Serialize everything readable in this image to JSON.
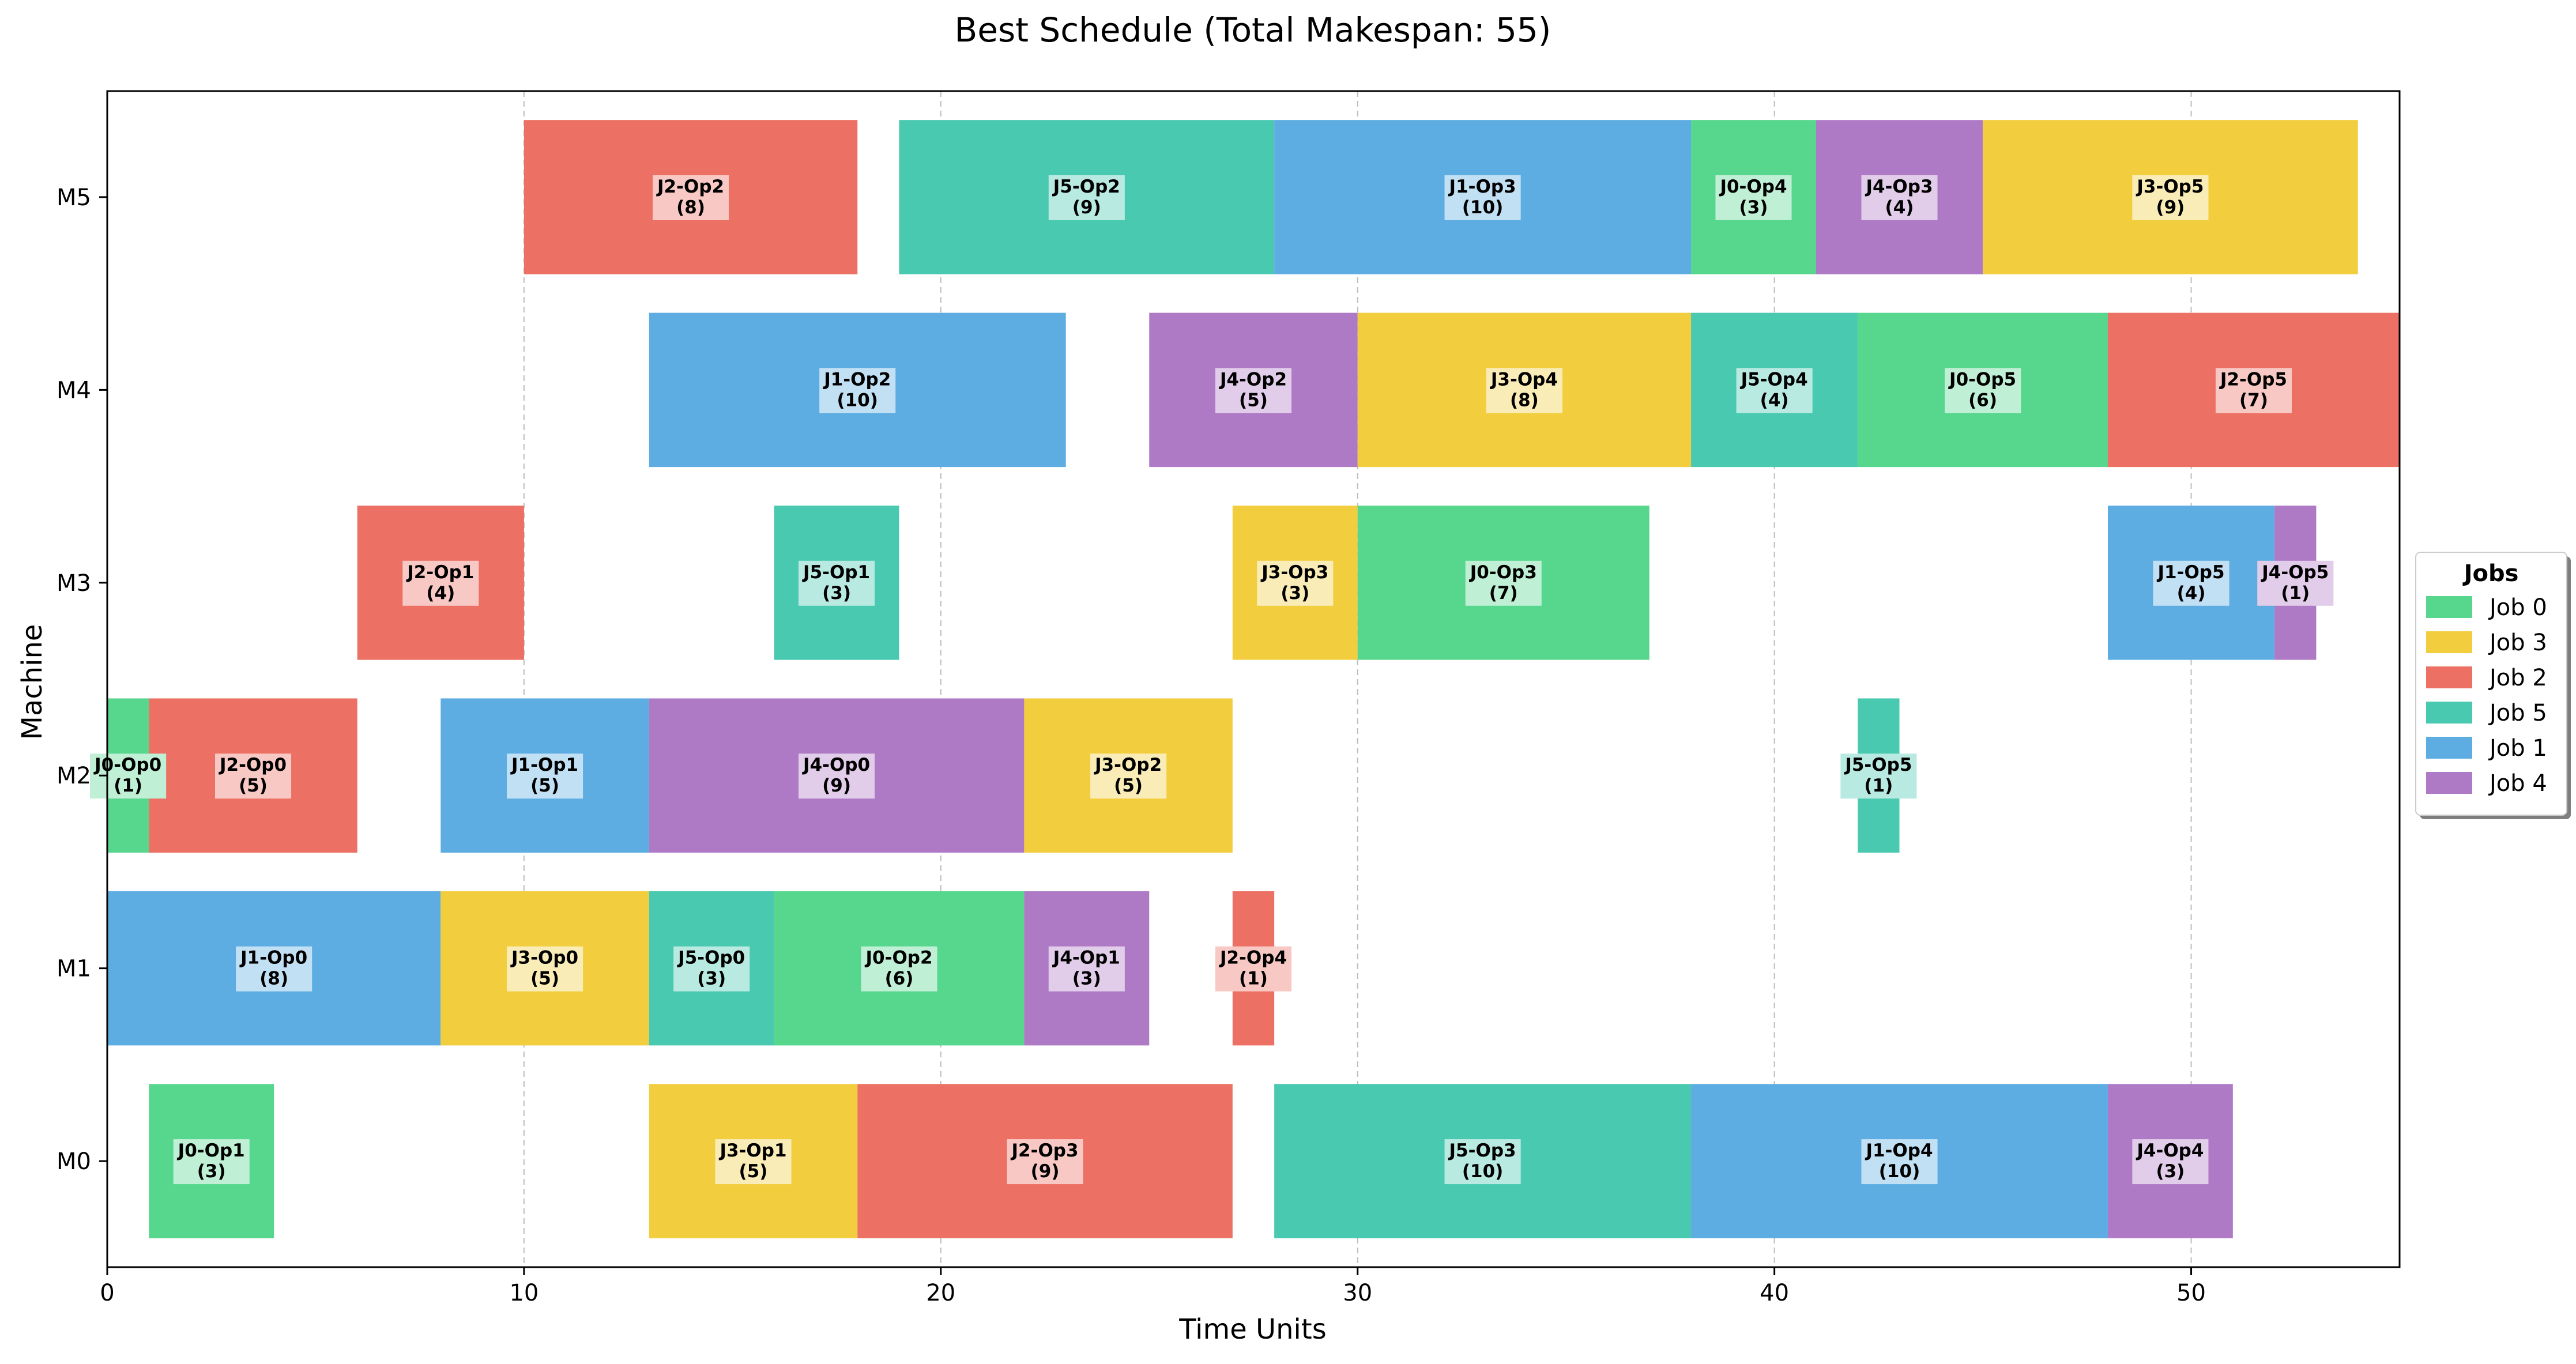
{
  "chart_data": {
    "type": "gantt",
    "title": "Best Schedule (Total Makespan: 55)",
    "xlabel": "Time Units",
    "ylabel": "Machine",
    "xlim": [
      0,
      55
    ],
    "x_ticks": [
      0,
      10,
      20,
      30,
      40,
      50
    ],
    "grid": "vertical dashed",
    "machines": [
      "M0",
      "M1",
      "M2",
      "M3",
      "M4",
      "M5"
    ],
    "jobs": [
      {
        "name": "Job 0",
        "color": "#57d68d"
      },
      {
        "name": "Job 3",
        "color": "#f2ce3f"
      },
      {
        "name": "Job 2",
        "color": "#ec7063"
      },
      {
        "name": "Job 5",
        "color": "#48c9b0"
      },
      {
        "name": "Job 1",
        "color": "#5dade2"
      },
      {
        "name": "Job 4",
        "color": "#af7ac5"
      }
    ],
    "legend": {
      "title": "Jobs",
      "placement": "right"
    },
    "operations": [
      {
        "machine": "M0",
        "job": 0,
        "label": "J0-Op1",
        "duration": "(3)",
        "start": 1,
        "length": 3
      },
      {
        "machine": "M0",
        "job": 3,
        "label": "J3-Op1",
        "duration": "(5)",
        "start": 13,
        "length": 5
      },
      {
        "machine": "M0",
        "job": 2,
        "label": "J2-Op3",
        "duration": "(9)",
        "start": 18,
        "length": 9
      },
      {
        "machine": "M0",
        "job": 5,
        "label": "J5-Op3",
        "duration": "(10)",
        "start": 28,
        "length": 10
      },
      {
        "machine": "M0",
        "job": 1,
        "label": "J1-Op4",
        "duration": "(10)",
        "start": 38,
        "length": 10
      },
      {
        "machine": "M0",
        "job": 4,
        "label": "J4-Op4",
        "duration": "(3)",
        "start": 48,
        "length": 3
      },
      {
        "machine": "M1",
        "job": 1,
        "label": "J1-Op0",
        "duration": "(8)",
        "start": 0,
        "length": 8
      },
      {
        "machine": "M1",
        "job": 3,
        "label": "J3-Op0",
        "duration": "(5)",
        "start": 8,
        "length": 5
      },
      {
        "machine": "M1",
        "job": 5,
        "label": "J5-Op0",
        "duration": "(3)",
        "start": 13,
        "length": 3
      },
      {
        "machine": "M1",
        "job": 0,
        "label": "J0-Op2",
        "duration": "(6)",
        "start": 16,
        "length": 6
      },
      {
        "machine": "M1",
        "job": 4,
        "label": "J4-Op1",
        "duration": "(3)",
        "start": 22,
        "length": 3
      },
      {
        "machine": "M1",
        "job": 2,
        "label": "J2-Op4",
        "duration": "(1)",
        "start": 27,
        "length": 1
      },
      {
        "machine": "M2",
        "job": 0,
        "label": "J0-Op0",
        "duration": "(1)",
        "start": 0,
        "length": 1
      },
      {
        "machine": "M2",
        "job": 2,
        "label": "J2-Op0",
        "duration": "(5)",
        "start": 1,
        "length": 5
      },
      {
        "machine": "M2",
        "job": 1,
        "label": "J1-Op1",
        "duration": "(5)",
        "start": 8,
        "length": 5
      },
      {
        "machine": "M2",
        "job": 4,
        "label": "J4-Op0",
        "duration": "(9)",
        "start": 13,
        "length": 9
      },
      {
        "machine": "M2",
        "job": 3,
        "label": "J3-Op2",
        "duration": "(5)",
        "start": 22,
        "length": 5
      },
      {
        "machine": "M2",
        "job": 5,
        "label": "J5-Op5",
        "duration": "(1)",
        "start": 42,
        "length": 1
      },
      {
        "machine": "M3",
        "job": 2,
        "label": "J2-Op1",
        "duration": "(4)",
        "start": 6,
        "length": 4
      },
      {
        "machine": "M3",
        "job": 5,
        "label": "J5-Op1",
        "duration": "(3)",
        "start": 16,
        "length": 3
      },
      {
        "machine": "M3",
        "job": 3,
        "label": "J3-Op3",
        "duration": "(3)",
        "start": 27,
        "length": 3
      },
      {
        "machine": "M3",
        "job": 0,
        "label": "J0-Op3",
        "duration": "(7)",
        "start": 30,
        "length": 7
      },
      {
        "machine": "M3",
        "job": 1,
        "label": "J1-Op5",
        "duration": "(4)",
        "start": 48,
        "length": 4
      },
      {
        "machine": "M3",
        "job": 4,
        "label": "J4-Op5",
        "duration": "(1)",
        "start": 52,
        "length": 1
      },
      {
        "machine": "M4",
        "job": 1,
        "label": "J1-Op2",
        "duration": "(10)",
        "start": 13,
        "length": 10
      },
      {
        "machine": "M4",
        "job": 4,
        "label": "J4-Op2",
        "duration": "(5)",
        "start": 25,
        "length": 5
      },
      {
        "machine": "M4",
        "job": 3,
        "label": "J3-Op4",
        "duration": "(8)",
        "start": 30,
        "length": 8
      },
      {
        "machine": "M4",
        "job": 5,
        "label": "J5-Op4",
        "duration": "(4)",
        "start": 38,
        "length": 4
      },
      {
        "machine": "M4",
        "job": 0,
        "label": "J0-Op5",
        "duration": "(6)",
        "start": 42,
        "length": 6
      },
      {
        "machine": "M4",
        "job": 2,
        "label": "J2-Op5",
        "duration": "(7)",
        "start": 48,
        "length": 7
      },
      {
        "machine": "M5",
        "job": 2,
        "label": "J2-Op2",
        "duration": "(8)",
        "start": 10,
        "length": 8
      },
      {
        "machine": "M5",
        "job": 5,
        "label": "J5-Op2",
        "duration": "(9)",
        "start": 19,
        "length": 9
      },
      {
        "machine": "M5",
        "job": 1,
        "label": "J1-Op3",
        "duration": "(10)",
        "start": 28,
        "length": 10
      },
      {
        "machine": "M5",
        "job": 0,
        "label": "J0-Op4",
        "duration": "(3)",
        "start": 38,
        "length": 3
      },
      {
        "machine": "M5",
        "job": 4,
        "label": "J4-Op3",
        "duration": "(4)",
        "start": 41,
        "length": 4
      },
      {
        "machine": "M5",
        "job": 3,
        "label": "J3-Op5",
        "duration": "(9)",
        "start": 45,
        "length": 9
      }
    ]
  }
}
